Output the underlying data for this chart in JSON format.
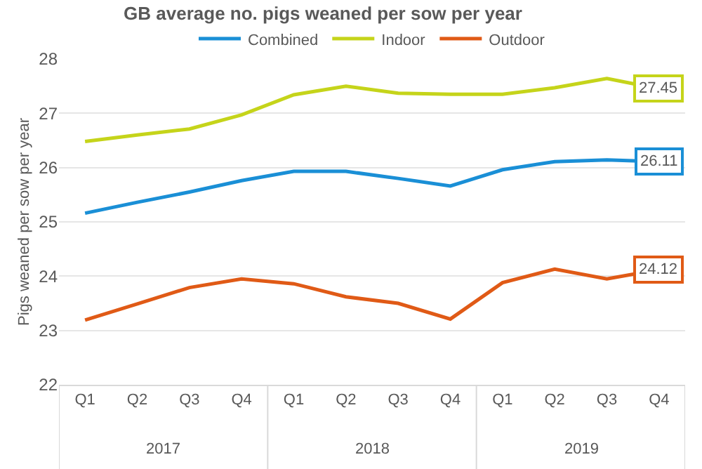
{
  "chart_data": {
    "type": "line",
    "title": "GB average no. pigs weaned per sow per year",
    "ylabel": "Pigs weaned per sow per year",
    "categories": [
      "Q1",
      "Q2",
      "Q3",
      "Q4",
      "Q1",
      "Q2",
      "Q3",
      "Q4",
      "Q1",
      "Q2",
      "Q3",
      "Q4"
    ],
    "annotations": [
      "2017",
      "2018",
      "2019"
    ],
    "series": [
      {
        "name": "Combined",
        "color": "#1a8fd6",
        "values": [
          25.16,
          25.36,
          25.55,
          25.76,
          25.93,
          25.93,
          25.8,
          25.66,
          25.96,
          26.11,
          26.14,
          26.11
        ],
        "value_labels": [
          null,
          null,
          null,
          null,
          null,
          null,
          null,
          null,
          null,
          null,
          null,
          "26.11"
        ]
      },
      {
        "name": "Indoor",
        "color": "#c5d41a",
        "values": [
          26.48,
          26.6,
          26.71,
          26.97,
          27.34,
          27.5,
          27.37,
          27.35,
          27.35,
          27.47,
          27.64,
          27.45
        ],
        "value_labels": [
          null,
          null,
          null,
          null,
          null,
          null,
          null,
          null,
          null,
          null,
          null,
          "27.45"
        ]
      },
      {
        "name": "Outdoor",
        "color": "#e05a16",
        "values": [
          23.19,
          23.49,
          23.79,
          23.95,
          23.86,
          23.62,
          23.5,
          23.21,
          23.88,
          24.13,
          23.95,
          24.12
        ],
        "value_labels": [
          null,
          null,
          null,
          null,
          null,
          null,
          null,
          null,
          null,
          null,
          null,
          "24.12"
        ]
      }
    ],
    "ylim": [
      22,
      28
    ],
    "yticks": [
      22,
      23,
      24,
      25,
      26,
      27,
      28
    ],
    "grid": "y",
    "legend": "top",
    "marker": "none",
    "line_style": "solid"
  }
}
